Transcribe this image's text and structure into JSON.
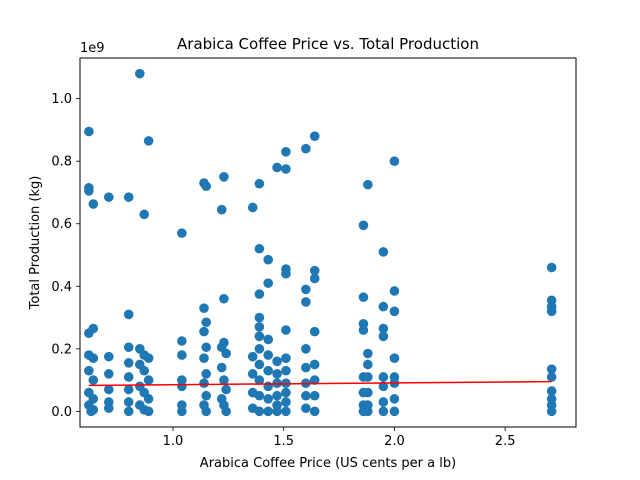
{
  "chart_data": {
    "type": "scatter",
    "title": "Arabica Coffee Price vs. Total Production",
    "xlabel": "Arabica Coffee Price (US cents per a lb)",
    "ylabel": "Total Production (kg)",
    "y_offset_label": "1e9",
    "xlim": [
      0.58,
      2.82
    ],
    "ylim": [
      -0.05,
      1.13
    ],
    "x_ticks": [
      1.0,
      1.5,
      2.0,
      2.5
    ],
    "x_tick_labels": [
      "1.0",
      "1.5",
      "2.0",
      "2.5"
    ],
    "y_ticks": [
      0.0,
      0.2,
      0.4,
      0.6,
      0.8,
      1.0
    ],
    "y_tick_labels": [
      "0.0",
      "0.2",
      "0.4",
      "0.6",
      "0.8",
      "1.0"
    ],
    "y_scale_note": "values in units of 1e9 kg",
    "grid": false,
    "point_color": "#1f77b4",
    "trend_line": {
      "color": "#ff0000",
      "x": [
        0.62,
        2.71
      ],
      "y": [
        0.083,
        0.095
      ]
    },
    "points": [
      {
        "x": 0.62,
        "y": 0.895
      },
      {
        "x": 0.62,
        "y": 0.715
      },
      {
        "x": 0.62,
        "y": 0.705
      },
      {
        "x": 0.64,
        "y": 0.663
      },
      {
        "x": 0.62,
        "y": 0.25
      },
      {
        "x": 0.64,
        "y": 0.265
      },
      {
        "x": 0.62,
        "y": 0.18
      },
      {
        "x": 0.64,
        "y": 0.17
      },
      {
        "x": 0.62,
        "y": 0.13
      },
      {
        "x": 0.64,
        "y": 0.1
      },
      {
        "x": 0.62,
        "y": 0.06
      },
      {
        "x": 0.64,
        "y": 0.04
      },
      {
        "x": 0.62,
        "y": 0.02
      },
      {
        "x": 0.64,
        "y": 0.005
      },
      {
        "x": 0.63,
        "y": 0.0
      },
      {
        "x": 0.71,
        "y": 0.685
      },
      {
        "x": 0.71,
        "y": 0.175
      },
      {
        "x": 0.71,
        "y": 0.12
      },
      {
        "x": 0.71,
        "y": 0.07
      },
      {
        "x": 0.71,
        "y": 0.03
      },
      {
        "x": 0.71,
        "y": 0.01
      },
      {
        "x": 0.8,
        "y": 0.685
      },
      {
        "x": 0.8,
        "y": 0.31
      },
      {
        "x": 0.8,
        "y": 0.205
      },
      {
        "x": 0.8,
        "y": 0.155
      },
      {
        "x": 0.8,
        "y": 0.11
      },
      {
        "x": 0.8,
        "y": 0.07
      },
      {
        "x": 0.8,
        "y": 0.03
      },
      {
        "x": 0.8,
        "y": 0.0
      },
      {
        "x": 0.85,
        "y": 1.08
      },
      {
        "x": 0.87,
        "y": 0.63
      },
      {
        "x": 0.89,
        "y": 0.865
      },
      {
        "x": 0.85,
        "y": 0.2
      },
      {
        "x": 0.87,
        "y": 0.18
      },
      {
        "x": 0.89,
        "y": 0.17
      },
      {
        "x": 0.85,
        "y": 0.15
      },
      {
        "x": 0.87,
        "y": 0.13
      },
      {
        "x": 0.89,
        "y": 0.1
      },
      {
        "x": 0.85,
        "y": 0.08
      },
      {
        "x": 0.87,
        "y": 0.06
      },
      {
        "x": 0.89,
        "y": 0.04
      },
      {
        "x": 0.85,
        "y": 0.02
      },
      {
        "x": 0.87,
        "y": 0.005
      },
      {
        "x": 0.89,
        "y": 0.0
      },
      {
        "x": 1.04,
        "y": 0.57
      },
      {
        "x": 1.04,
        "y": 0.225
      },
      {
        "x": 1.04,
        "y": 0.18
      },
      {
        "x": 1.04,
        "y": 0.1
      },
      {
        "x": 1.04,
        "y": 0.08
      },
      {
        "x": 1.04,
        "y": 0.02
      },
      {
        "x": 1.04,
        "y": 0.0
      },
      {
        "x": 1.14,
        "y": 0.73
      },
      {
        "x": 1.15,
        "y": 0.72
      },
      {
        "x": 1.14,
        "y": 0.33
      },
      {
        "x": 1.15,
        "y": 0.285
      },
      {
        "x": 1.14,
        "y": 0.255
      },
      {
        "x": 1.15,
        "y": 0.205
      },
      {
        "x": 1.14,
        "y": 0.17
      },
      {
        "x": 1.15,
        "y": 0.12
      },
      {
        "x": 1.14,
        "y": 0.09
      },
      {
        "x": 1.15,
        "y": 0.05
      },
      {
        "x": 1.14,
        "y": 0.02
      },
      {
        "x": 1.15,
        "y": 0.0
      },
      {
        "x": 1.22,
        "y": 0.645
      },
      {
        "x": 1.23,
        "y": 0.75
      },
      {
        "x": 1.23,
        "y": 0.36
      },
      {
        "x": 1.22,
        "y": 0.205
      },
      {
        "x": 1.23,
        "y": 0.22
      },
      {
        "x": 1.24,
        "y": 0.185
      },
      {
        "x": 1.22,
        "y": 0.14
      },
      {
        "x": 1.23,
        "y": 0.1
      },
      {
        "x": 1.24,
        "y": 0.07
      },
      {
        "x": 1.22,
        "y": 0.04
      },
      {
        "x": 1.23,
        "y": 0.02
      },
      {
        "x": 1.24,
        "y": 0.0
      },
      {
        "x": 1.36,
        "y": 0.652
      },
      {
        "x": 1.39,
        "y": 0.728
      },
      {
        "x": 1.39,
        "y": 0.52
      },
      {
        "x": 1.39,
        "y": 0.375
      },
      {
        "x": 1.36,
        "y": 0.175
      },
      {
        "x": 1.36,
        "y": 0.12
      },
      {
        "x": 1.36,
        "y": 0.06
      },
      {
        "x": 1.36,
        "y": 0.01
      },
      {
        "x": 1.39,
        "y": 0.3
      },
      {
        "x": 1.39,
        "y": 0.27
      },
      {
        "x": 1.39,
        "y": 0.24
      },
      {
        "x": 1.39,
        "y": 0.2
      },
      {
        "x": 1.39,
        "y": 0.15
      },
      {
        "x": 1.39,
        "y": 0.1
      },
      {
        "x": 1.39,
        "y": 0.05
      },
      {
        "x": 1.39,
        "y": 0.0
      },
      {
        "x": 1.43,
        "y": 0.485
      },
      {
        "x": 1.43,
        "y": 0.41
      },
      {
        "x": 1.43,
        "y": 0.23
      },
      {
        "x": 1.43,
        "y": 0.18
      },
      {
        "x": 1.43,
        "y": 0.13
      },
      {
        "x": 1.43,
        "y": 0.08
      },
      {
        "x": 1.43,
        "y": 0.04
      },
      {
        "x": 1.43,
        "y": 0.0
      },
      {
        "x": 1.47,
        "y": 0.78
      },
      {
        "x": 1.47,
        "y": 0.16
      },
      {
        "x": 1.47,
        "y": 0.12
      },
      {
        "x": 1.47,
        "y": 0.09
      },
      {
        "x": 1.47,
        "y": 0.05
      },
      {
        "x": 1.47,
        "y": 0.02
      },
      {
        "x": 1.47,
        "y": 0.0
      },
      {
        "x": 1.51,
        "y": 0.83
      },
      {
        "x": 1.51,
        "y": 0.775
      },
      {
        "x": 1.51,
        "y": 0.455
      },
      {
        "x": 1.51,
        "y": 0.44
      },
      {
        "x": 1.51,
        "y": 0.26
      },
      {
        "x": 1.51,
        "y": 0.17
      },
      {
        "x": 1.51,
        "y": 0.13
      },
      {
        "x": 1.51,
        "y": 0.09
      },
      {
        "x": 1.51,
        "y": 0.06
      },
      {
        "x": 1.51,
        "y": 0.03
      },
      {
        "x": 1.51,
        "y": 0.0
      },
      {
        "x": 1.6,
        "y": 0.84
      },
      {
        "x": 1.6,
        "y": 0.39
      },
      {
        "x": 1.6,
        "y": 0.35
      },
      {
        "x": 1.6,
        "y": 0.2
      },
      {
        "x": 1.6,
        "y": 0.14
      },
      {
        "x": 1.6,
        "y": 0.09
      },
      {
        "x": 1.6,
        "y": 0.05
      },
      {
        "x": 1.6,
        "y": 0.01
      },
      {
        "x": 1.64,
        "y": 0.88
      },
      {
        "x": 1.64,
        "y": 0.45
      },
      {
        "x": 1.64,
        "y": 0.425
      },
      {
        "x": 1.64,
        "y": 0.255
      },
      {
        "x": 1.64,
        "y": 0.15
      },
      {
        "x": 1.64,
        "y": 0.1
      },
      {
        "x": 1.64,
        "y": 0.05
      },
      {
        "x": 1.64,
        "y": 0.0
      },
      {
        "x": 1.86,
        "y": 0.595
      },
      {
        "x": 1.86,
        "y": 0.365
      },
      {
        "x": 1.86,
        "y": 0.28
      },
      {
        "x": 1.86,
        "y": 0.26
      },
      {
        "x": 1.86,
        "y": 0.11
      },
      {
        "x": 1.86,
        "y": 0.06
      },
      {
        "x": 1.86,
        "y": 0.02
      },
      {
        "x": 1.86,
        "y": 0.0
      },
      {
        "x": 1.88,
        "y": 0.725
      },
      {
        "x": 1.88,
        "y": 0.185
      },
      {
        "x": 1.88,
        "y": 0.15
      },
      {
        "x": 1.88,
        "y": 0.11
      },
      {
        "x": 1.88,
        "y": 0.06
      },
      {
        "x": 1.88,
        "y": 0.02
      },
      {
        "x": 1.88,
        "y": 0.0
      },
      {
        "x": 1.95,
        "y": 0.51
      },
      {
        "x": 1.95,
        "y": 0.335
      },
      {
        "x": 1.95,
        "y": 0.265
      },
      {
        "x": 1.95,
        "y": 0.24
      },
      {
        "x": 1.95,
        "y": 0.11
      },
      {
        "x": 1.95,
        "y": 0.08
      },
      {
        "x": 1.95,
        "y": 0.03
      },
      {
        "x": 1.95,
        "y": 0.0
      },
      {
        "x": 2.0,
        "y": 0.8
      },
      {
        "x": 2.0,
        "y": 0.385
      },
      {
        "x": 2.0,
        "y": 0.32
      },
      {
        "x": 2.0,
        "y": 0.17
      },
      {
        "x": 2.0,
        "y": 0.11
      },
      {
        "x": 2.0,
        "y": 0.09
      },
      {
        "x": 2.0,
        "y": 0.04
      },
      {
        "x": 2.0,
        "y": 0.0
      },
      {
        "x": 2.71,
        "y": 0.46
      },
      {
        "x": 2.71,
        "y": 0.355
      },
      {
        "x": 2.71,
        "y": 0.335
      },
      {
        "x": 2.71,
        "y": 0.32
      },
      {
        "x": 2.71,
        "y": 0.135
      },
      {
        "x": 2.71,
        "y": 0.11
      },
      {
        "x": 2.71,
        "y": 0.065
      },
      {
        "x": 2.71,
        "y": 0.04
      },
      {
        "x": 2.71,
        "y": 0.02
      },
      {
        "x": 2.71,
        "y": 0.0
      }
    ]
  }
}
